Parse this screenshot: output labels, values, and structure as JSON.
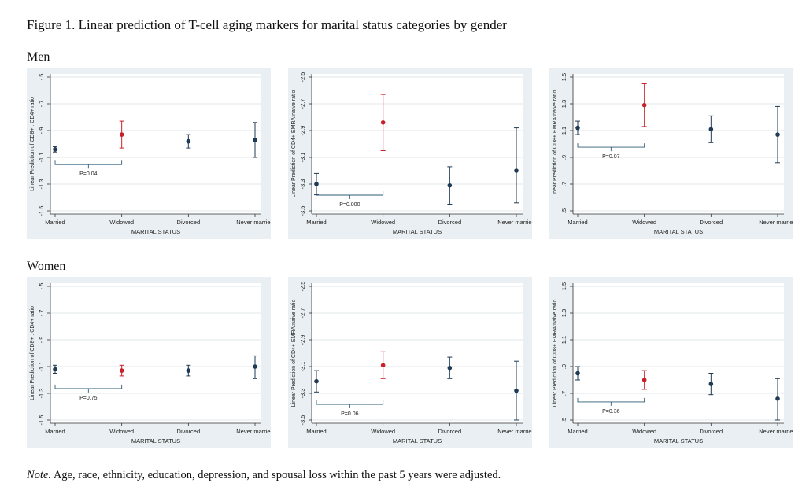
{
  "figure": {
    "title": "Figure 1. Linear prediction of T-cell aging markers for marital status categories by gender",
    "row_labels": {
      "men": "Men",
      "women": "Women"
    },
    "note_label": "Note.",
    "note_text": " Age, race, ethnicity, education, depression, and spousal loss within the past 5 years were adjusted."
  },
  "colors": {
    "point": "#1f3a55",
    "highlight": "#c8202a",
    "panel_bg": "#e9eff2",
    "plot_bg": "#ffffff",
    "grid": "#dfe7ea"
  },
  "chart_data": [
    {
      "type": "scatter",
      "panel": "Men",
      "xlabel": "MARITAL STATUS",
      "ylabel": "Linear Prediction of CD8+ : CD4+ ratio",
      "categories": [
        "Married",
        "Widowed",
        "Divorced",
        "Never married"
      ],
      "yticks": [
        -0.5,
        -0.7,
        -0.9,
        -1.1,
        -1.3,
        -1.5
      ],
      "ytick_labels": [
        "-.5",
        "-.7",
        "-.9",
        "-1.1",
        "-1.3",
        "-1.5"
      ],
      "ylim": [
        -1.5,
        -0.5
      ],
      "estimates": [
        -1.04,
        -0.93,
        -0.98,
        -0.97
      ],
      "ci_low": [
        -1.06,
        -1.03,
        -1.03,
        -1.1
      ],
      "ci_high": [
        -1.02,
        -0.83,
        -0.93,
        -0.84
      ],
      "highlight_index": 1,
      "bracket": [
        0,
        1
      ],
      "p_value": "P=0.04"
    },
    {
      "type": "scatter",
      "panel": "Men",
      "xlabel": "MARITAL STATUS",
      "ylabel": "Linear Prediction of CD4+ EMRA:naive ratio",
      "categories": [
        "Married",
        "Widowed",
        "Divorced",
        "Never married"
      ],
      "yticks": [
        -2.5,
        -2.7,
        -2.9,
        -3.1,
        -3.3,
        -3.5
      ],
      "ytick_labels": [
        "-2.5",
        "-2.7",
        "-2.9",
        "-3.1",
        "-3.3",
        "-3.5"
      ],
      "ylim": [
        -3.5,
        -2.5
      ],
      "estimates": [
        -3.3,
        -2.84,
        -3.31,
        -3.2
      ],
      "ci_low": [
        -3.38,
        -3.05,
        -3.45,
        -3.44
      ],
      "ci_high": [
        -3.22,
        -2.63,
        -3.17,
        -2.88
      ],
      "highlight_index": 1,
      "bracket": [
        0,
        1
      ],
      "p_value": "P=0.000"
    },
    {
      "type": "scatter",
      "panel": "Men",
      "xlabel": "MARITAL STATUS",
      "ylabel": "Linear Prediction of CD8+ EMRA:naive ratio",
      "categories": [
        "Married",
        "Widowed",
        "Divorced",
        "Never married"
      ],
      "yticks": [
        1.5,
        1.3,
        1.1,
        0.9,
        0.7,
        0.5
      ],
      "ytick_labels": [
        "1.5",
        "1.3",
        "1.1",
        ".9",
        ".7",
        ".5"
      ],
      "ylim": [
        0.5,
        1.5
      ],
      "estimates": [
        1.12,
        1.29,
        1.11,
        1.07
      ],
      "ci_low": [
        1.07,
        1.13,
        1.01,
        0.86
      ],
      "ci_high": [
        1.17,
        1.45,
        1.21,
        1.28
      ],
      "highlight_index": 1,
      "bracket": [
        0,
        1
      ],
      "p_value": "P=0.07"
    },
    {
      "type": "scatter",
      "panel": "Women",
      "xlabel": "MARITAL STATUS",
      "ylabel": "Linear Prediction of CD8+ : CD4+ ratio",
      "categories": [
        "Married",
        "Widowed",
        "Divorced",
        "Never married"
      ],
      "yticks": [
        -0.5,
        -0.7,
        -0.9,
        -1.1,
        -1.3,
        -1.5
      ],
      "ytick_labels": [
        "-.5",
        "-.7",
        "-.9",
        "-1.1",
        "-1.3",
        "-1.5"
      ],
      "ylim": [
        -1.5,
        -0.5
      ],
      "estimates": [
        -1.12,
        -1.13,
        -1.13,
        -1.1
      ],
      "ci_low": [
        -1.15,
        -1.17,
        -1.17,
        -1.19
      ],
      "ci_high": [
        -1.09,
        -1.09,
        -1.09,
        -1.02
      ],
      "highlight_index": 1,
      "bracket": [
        0,
        1
      ],
      "p_value": "P=0.75"
    },
    {
      "type": "scatter",
      "panel": "Women",
      "xlabel": "MARITAL STATUS",
      "ylabel": "Linear Prediction of CD4+ EMRA:naive ratio",
      "categories": [
        "Married",
        "Widowed",
        "Divorced",
        "Never married"
      ],
      "yticks": [
        -2.5,
        -2.7,
        -2.9,
        -3.1,
        -3.3,
        -3.5
      ],
      "ytick_labels": [
        "-2.5",
        "-2.7",
        "-2.9",
        "-3.1",
        "-3.3",
        "-3.5"
      ],
      "ylim": [
        -3.5,
        -2.5
      ],
      "estimates": [
        -3.21,
        -3.09,
        -3.11,
        -3.28
      ],
      "ci_low": [
        -3.29,
        -3.19,
        -3.19,
        -3.5
      ],
      "ci_high": [
        -3.13,
        -2.99,
        -3.03,
        -3.06
      ],
      "highlight_index": 1,
      "bracket": [
        0,
        1
      ],
      "p_value": "P=0.06"
    },
    {
      "type": "scatter",
      "panel": "Women",
      "xlabel": "MARITAL STATUS",
      "ylabel": "Linear Prediction of CD8+ EMRA:naive ratio",
      "categories": [
        "Married",
        "Widowed",
        "Divorced",
        "Never married"
      ],
      "yticks": [
        1.5,
        1.3,
        1.1,
        0.9,
        0.7,
        0.5
      ],
      "ytick_labels": [
        "1.5",
        "1.3",
        "1.1",
        ".9",
        ".7",
        ".5"
      ],
      "ylim": [
        0.5,
        1.5
      ],
      "estimates": [
        0.85,
        0.8,
        0.77,
        0.66
      ],
      "ci_low": [
        0.8,
        0.73,
        0.69,
        0.5
      ],
      "ci_high": [
        0.9,
        0.87,
        0.85,
        0.81
      ],
      "highlight_index": 1,
      "bracket": [
        0,
        1
      ],
      "p_value": "P=0.36"
    }
  ]
}
